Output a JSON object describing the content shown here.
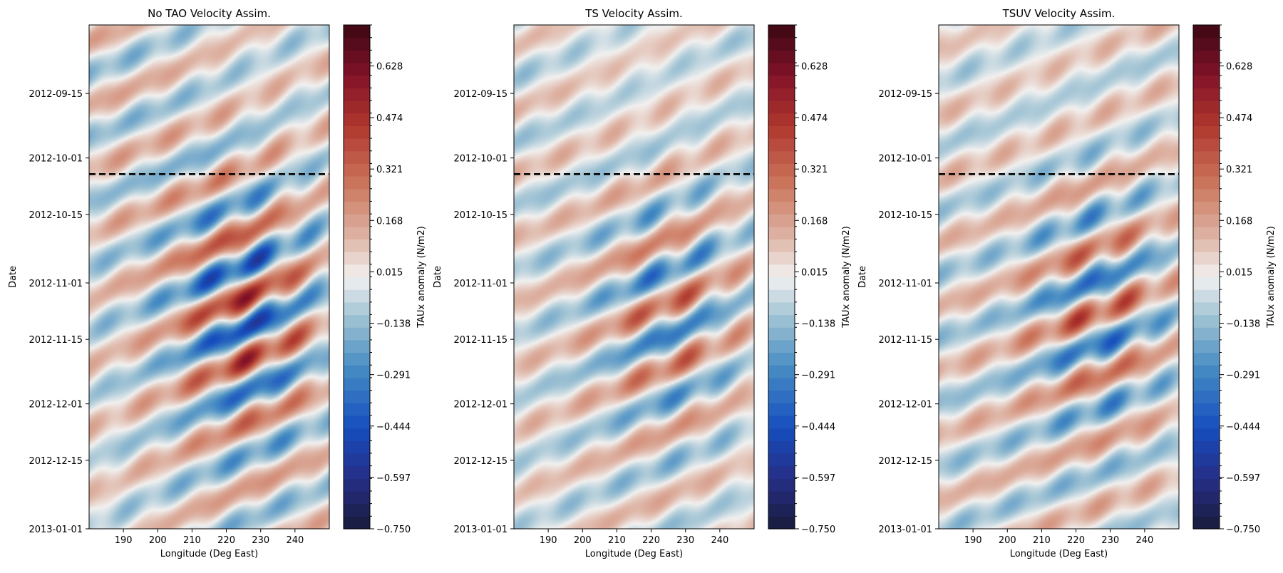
{
  "chart_data": [
    {
      "type": "heatmap",
      "title": "No TAO Velocity Assim.",
      "xlabel": "Longitude (Deg East)",
      "ylabel": "Date",
      "x_ticks": [
        190,
        200,
        210,
        220,
        230,
        240
      ],
      "xlim": [
        180,
        250
      ],
      "y_ticks": [
        "2012-09-15",
        "2012-10-01",
        "2012-10-15",
        "2012-11-01",
        "2012-11-15",
        "2012-12-01",
        "2012-12-15",
        "2013-01-01"
      ],
      "ylim": [
        "2012-08-29",
        "2013-01-01"
      ],
      "colorbar": {
        "label": "TAUx anomaly (N/m2)",
        "range": [
          -0.75,
          0.75
        ],
        "ticks": [
          "−0.750",
          "−0.597",
          "−0.444",
          "−0.291",
          "−0.138",
          "0.015",
          "0.168",
          "0.321",
          "0.474",
          "0.628"
        ],
        "colormap": "balance (navy → blue → white → red → dark red)"
      },
      "reference_line": {
        "date": "2012-10-05",
        "style": "dashed",
        "color": "#000000"
      },
      "pattern": "westward-propagating diagonal anomaly bands; strongest amplitude near 220–245 E during Nov 2012",
      "amplitude_max": 0.7
    },
    {
      "type": "heatmap",
      "title": "TS Velocity Assim.",
      "xlabel": "Longitude (Deg East)",
      "ylabel": "Date",
      "x_ticks": [
        190,
        200,
        210,
        220,
        230,
        240
      ],
      "xlim": [
        180,
        250
      ],
      "y_ticks": [
        "2012-09-15",
        "2012-10-01",
        "2012-10-15",
        "2012-11-01",
        "2012-11-15",
        "2012-12-01",
        "2012-12-15",
        "2013-01-01"
      ],
      "ylim": [
        "2012-08-29",
        "2013-01-01"
      ],
      "colorbar": {
        "label": "TAUx anomaly (N/m2)",
        "range": [
          -0.75,
          0.75
        ],
        "ticks": [
          "−0.750",
          "−0.597",
          "−0.444",
          "−0.291",
          "−0.138",
          "0.015",
          "0.168",
          "0.321",
          "0.474",
          "0.628"
        ],
        "colormap": "balance (navy → blue → white → red → dark red)"
      },
      "reference_line": {
        "date": "2012-10-05",
        "style": "dashed",
        "color": "#000000"
      },
      "pattern": "westward-propagating diagonal anomaly bands; moderate amplitude",
      "amplitude_max": 0.55
    },
    {
      "type": "heatmap",
      "title": "TSUV Velocity Assim.",
      "xlabel": "Longitude (Deg East)",
      "ylabel": "Date",
      "x_ticks": [
        190,
        200,
        210,
        220,
        230,
        240
      ],
      "xlim": [
        180,
        250
      ],
      "y_ticks": [
        "2012-09-15",
        "2012-10-01",
        "2012-10-15",
        "2012-11-01",
        "2012-11-15",
        "2012-12-01",
        "2012-12-15",
        "2013-01-01"
      ],
      "ylim": [
        "2012-08-29",
        "2013-01-01"
      ],
      "colorbar": {
        "label": "TAUx anomaly (N/m2)",
        "range": [
          -0.75,
          0.75
        ],
        "ticks": [
          "−0.750",
          "−0.597",
          "−0.444",
          "−0.291",
          "−0.138",
          "0.015",
          "0.168",
          "0.321",
          "0.474",
          "0.628"
        ],
        "colormap": "balance (navy → blue → white → red → dark red)"
      },
      "reference_line": {
        "date": "2012-10-05",
        "style": "dashed",
        "color": "#000000"
      },
      "pattern": "broader, patchier diagonal anomaly bands; strongest near 230–245 E in Nov 2012",
      "amplitude_max": 0.62
    }
  ]
}
